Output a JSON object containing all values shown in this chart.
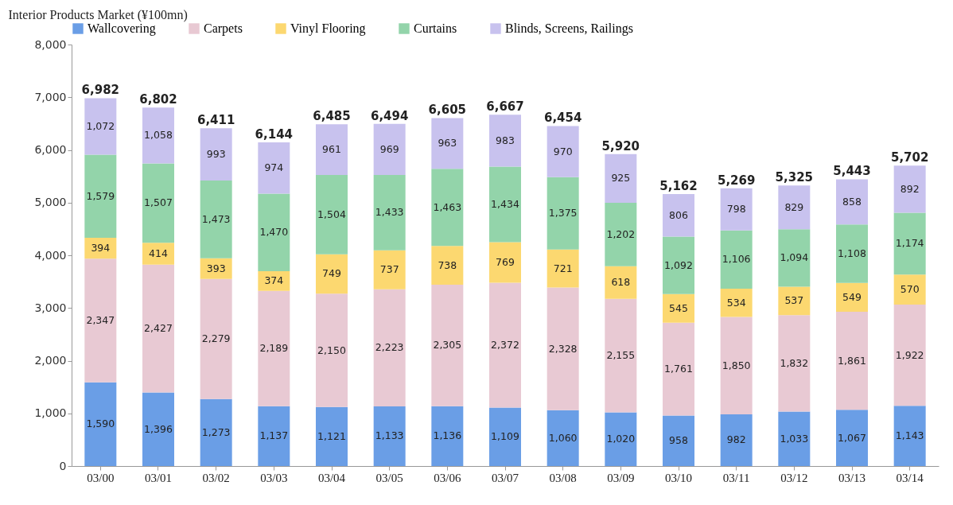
{
  "chart_data": {
    "type": "bar",
    "stacked": true,
    "ylabel": "Interior Products Market (¥100mn)",
    "categories": [
      "03/00",
      "03/01",
      "03/02",
      "03/03",
      "03/04",
      "03/05",
      "03/06",
      "03/07",
      "03/08",
      "03/09",
      "03/10",
      "03/11",
      "03/12",
      "03/13",
      "03/14"
    ],
    "series": [
      {
        "name": "Wallcovering",
        "color": "#6a9ee6",
        "values": [
          1590,
          1396,
          1273,
          1137,
          1121,
          1133,
          1136,
          1109,
          1060,
          1020,
          958,
          982,
          1033,
          1067,
          1143
        ],
        "value_labels": [
          "1,590",
          "1,396",
          "1,273",
          "1,137",
          "1,121",
          "1,133",
          "1,136",
          "1,109",
          "1,060",
          "1,020",
          "958",
          "982",
          "1,033",
          "1,067",
          "1,143"
        ]
      },
      {
        "name": "Carpets",
        "color": "#e8c9d3",
        "values": [
          2347,
          2427,
          2279,
          2189,
          2150,
          2223,
          2305,
          2372,
          2328,
          2155,
          1761,
          1850,
          1832,
          1861,
          1922
        ],
        "value_labels": [
          "2,347",
          "2,427",
          "2,279",
          "2,189",
          "2,150",
          "2,223",
          "2,305",
          "2,372",
          "2,328",
          "2,155",
          "1,761",
          "1,850",
          "1,832",
          "1,861",
          "1,922"
        ]
      },
      {
        "name": "Vinyl Flooring",
        "color": "#fcd870",
        "values": [
          394,
          414,
          393,
          374,
          749,
          737,
          738,
          769,
          721,
          618,
          545,
          534,
          537,
          549,
          570
        ],
        "value_labels": [
          "394",
          "414",
          "393",
          "374",
          "749",
          "737",
          "738",
          "769",
          "721",
          "618",
          "545",
          "534",
          "537",
          "549",
          "570"
        ]
      },
      {
        "name": "Curtains",
        "color": "#93d4aa",
        "values": [
          1579,
          1507,
          1473,
          1470,
          1504,
          1433,
          1463,
          1434,
          1375,
          1202,
          1092,
          1106,
          1094,
          1108,
          1174
        ],
        "value_labels": [
          "1,579",
          "1,507",
          "1,473",
          "1,470",
          "1,504",
          "1,433",
          "1,463",
          "1,434",
          "1,375",
          "1,202",
          "1,092",
          "1,106",
          "1,094",
          "1,108",
          "1,174"
        ]
      },
      {
        "name": "Blinds, Screens, Railings",
        "color": "#c8c2ee",
        "values": [
          1072,
          1058,
          993,
          974,
          961,
          969,
          963,
          983,
          970,
          925,
          806,
          798,
          829,
          858,
          892
        ],
        "value_labels": [
          "1,072",
          "1,058",
          "993",
          "974",
          "961",
          "969",
          "963",
          "983",
          "970",
          "925",
          "806",
          "798",
          "829",
          "858",
          "892"
        ]
      }
    ],
    "totals": [
      "6,982",
      "6,802",
      "6,411",
      "6,144",
      "6,485",
      "6,494",
      "6,605",
      "6,667",
      "6,454",
      "5,920",
      "5,162",
      "5,269",
      "5,325",
      "5,443",
      "5,702"
    ],
    "ylim": [
      0,
      8000
    ],
    "yticks": [
      0,
      {
        "value": 1000,
        "label": "1,000"
      },
      {
        "value": 2000,
        "label": "2,000"
      },
      {
        "value": 3000,
        "label": "3,000"
      },
      {
        "value": 4000,
        "label": "4,000"
      },
      {
        "value": 5000,
        "label": "5,000"
      },
      {
        "value": 6000,
        "label": "6,000"
      },
      {
        "value": 7000,
        "label": "7,000"
      },
      {
        "value": 8000,
        "label": "8,000"
      }
    ],
    "grid": false,
    "legend": "top"
  }
}
